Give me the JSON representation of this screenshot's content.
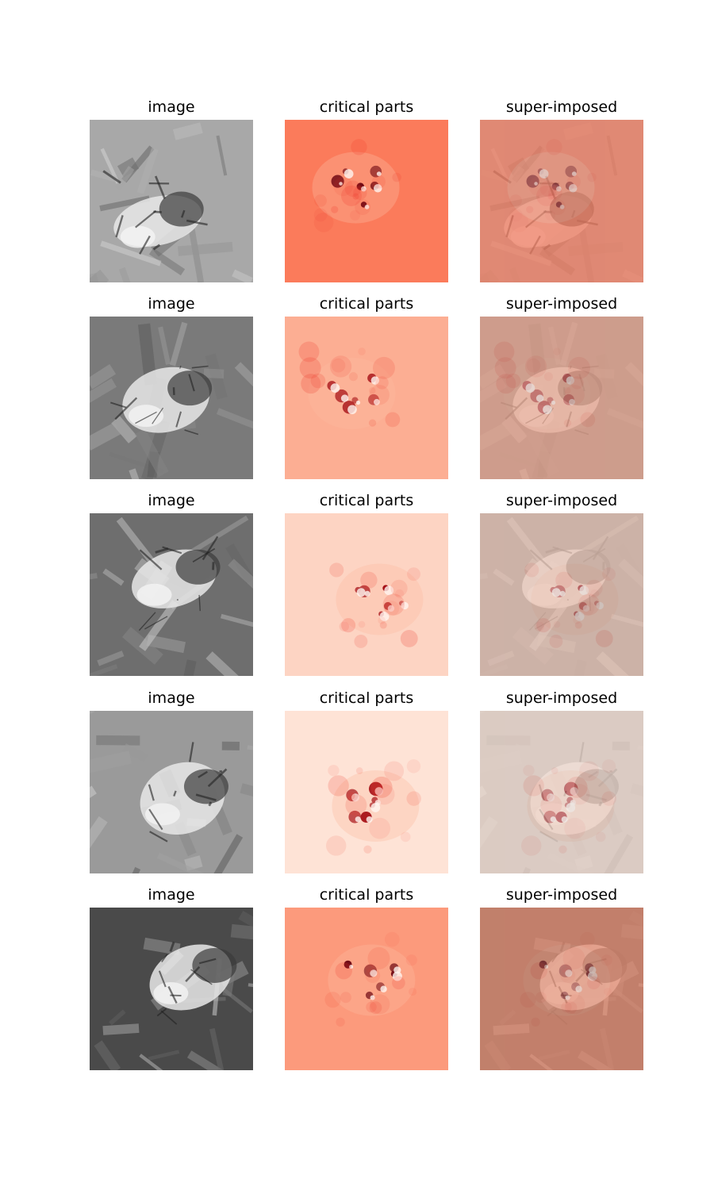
{
  "figure": {
    "rows": [
      {
        "image_title": "image",
        "critical_title": "critical parts",
        "super_title": "super-imposed",
        "heat_base": "#fb7b5b",
        "heat_spot": "#67000d",
        "gray_base": "#a8a8a8",
        "tint": "#d9897a"
      },
      {
        "image_title": "image",
        "critical_title": "critical parts",
        "super_title": "super-imposed",
        "heat_base": "#fcae93",
        "heat_spot": "#a50f15",
        "gray_base": "#7a7a7a",
        "tint": "#b89891"
      },
      {
        "image_title": "image",
        "critical_title": "critical parts",
        "super_title": "super-imposed",
        "heat_base": "#fdd4c3",
        "heat_spot": "#a50f15",
        "gray_base": "#6e6e6e",
        "tint": "#bfaca5"
      },
      {
        "image_title": "image",
        "critical_title": "critical parts",
        "super_title": "super-imposed",
        "heat_base": "#fee3d6",
        "heat_spot": "#a50f15",
        "gray_base": "#9a9a9a",
        "tint": "#cfc7c4"
      },
      {
        "image_title": "image",
        "critical_title": "critical parts",
        "super_title": "super-imposed",
        "heat_base": "#fc9a7c",
        "heat_spot": "#67000d",
        "gray_base": "#4a4a4a",
        "tint": "#b87a68"
      }
    ]
  }
}
